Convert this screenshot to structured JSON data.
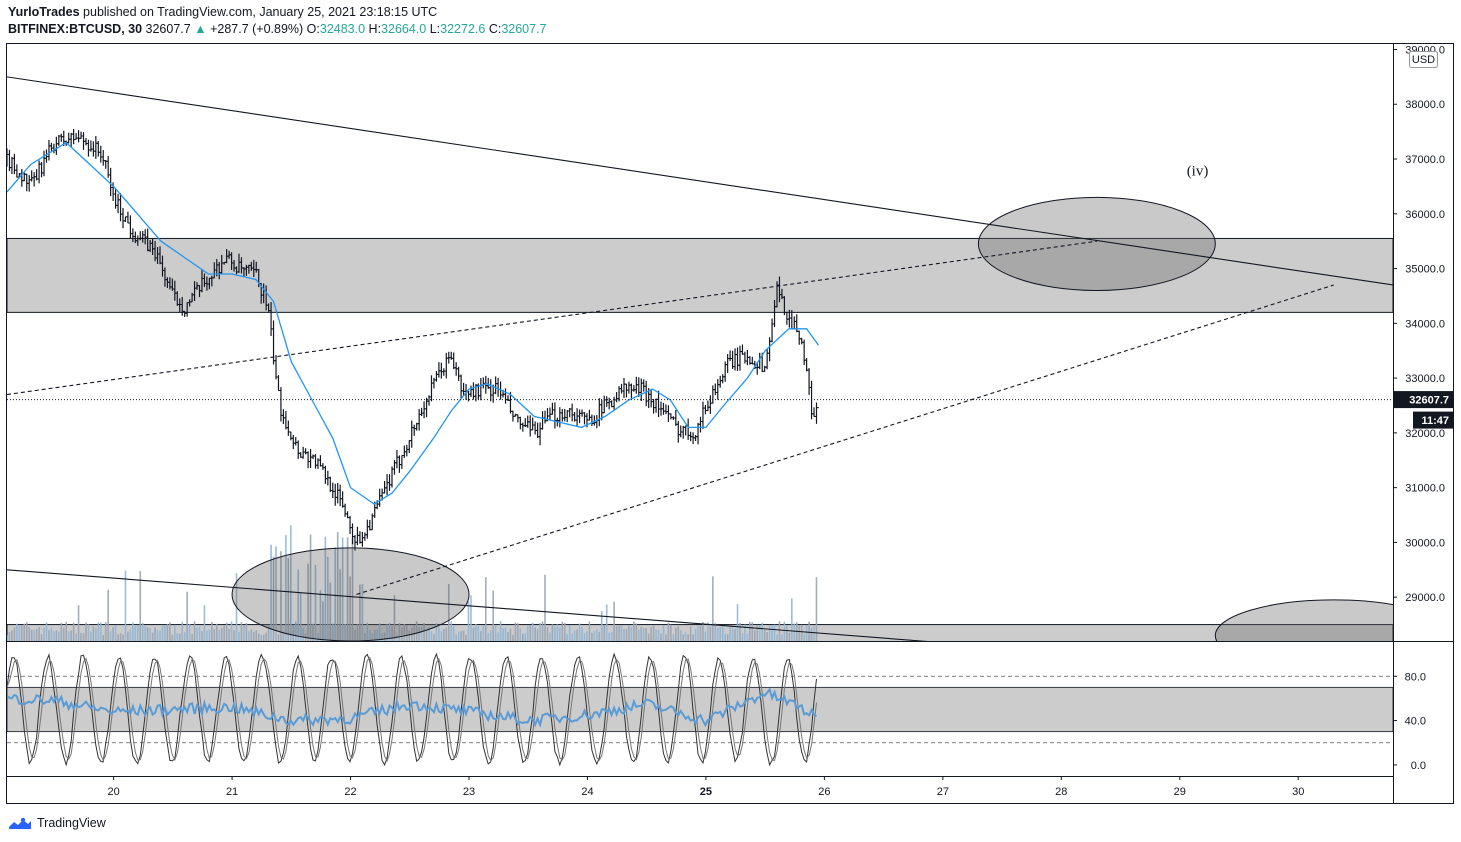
{
  "header": {
    "author": "YurloTrades",
    "published_text": "published on TradingView.com, January 25, 2021 23:18:15 UTC",
    "symbol": "BITFINEX:BTCUSD, 30",
    "last": "32607.7",
    "change_arrow": "▲",
    "change": "+287.7 (+0.89%)",
    "o_label": "O:",
    "o_value": "32483.0",
    "h_label": "H:",
    "h_value": "32664.0",
    "l_label": "L:",
    "l_value": "32272.6",
    "c_label": "C:",
    "c_value": "32607.7"
  },
  "price_axis": {
    "currency": "USD",
    "ticks": [
      "39000.0",
      "38000.0",
      "37000.0",
      "36000.0",
      "35000.0",
      "34000.0",
      "33000.0",
      "32000.0",
      "31000.0",
      "30000.0",
      "29000.0"
    ],
    "current_price_label": "32607.7",
    "countdown_label": "11:47"
  },
  "indicator_axis": {
    "ticks": [
      "80.0",
      "40.0",
      "0.0"
    ]
  },
  "time_axis": {
    "ticks": [
      "20",
      "21",
      "22",
      "23",
      "24",
      "25",
      "26",
      "27",
      "28",
      "29",
      "30"
    ]
  },
  "annotation": {
    "wave_label": "(iv)"
  },
  "footer": {
    "brand": "TradingView"
  },
  "colors": {
    "candle": "#131722",
    "ma": "#2196f3",
    "zone": "#cccccc",
    "volume": "#b0b6c0",
    "stoch": "#444444",
    "rsi": "#5b9bd5"
  },
  "chart_data": {
    "type": "candlestick",
    "title": "BITFINEX:BTCUSD, 30",
    "ylabel": "USD",
    "x_range": [
      19.1,
      30.8
    ],
    "y_range": [
      28200,
      39100
    ],
    "approx_closes": [
      [
        19.1,
        37000
      ],
      [
        19.3,
        36500
      ],
      [
        19.5,
        37300
      ],
      [
        19.7,
        37400
      ],
      [
        19.9,
        37100
      ],
      [
        20.0,
        36300
      ],
      [
        20.15,
        35700
      ],
      [
        20.35,
        35300
      ],
      [
        20.5,
        34500
      ],
      [
        20.6,
        34300
      ],
      [
        20.75,
        34700
      ],
      [
        20.95,
        35200
      ],
      [
        21.05,
        35000
      ],
      [
        21.2,
        34900
      ],
      [
        21.3,
        34300
      ],
      [
        21.4,
        32500
      ],
      [
        21.55,
        31700
      ],
      [
        21.7,
        31500
      ],
      [
        21.85,
        31000
      ],
      [
        21.95,
        30600
      ],
      [
        22.05,
        30000
      ],
      [
        22.15,
        30300
      ],
      [
        22.3,
        31000
      ],
      [
        22.45,
        31700
      ],
      [
        22.6,
        32400
      ],
      [
        22.75,
        33100
      ],
      [
        22.85,
        33400
      ],
      [
        22.95,
        32700
      ],
      [
        23.1,
        32800
      ],
      [
        23.25,
        32800
      ],
      [
        23.4,
        32200
      ],
      [
        23.55,
        32000
      ],
      [
        23.7,
        32300
      ],
      [
        23.85,
        32400
      ],
      [
        24.0,
        32200
      ],
      [
        24.15,
        32500
      ],
      [
        24.3,
        32800
      ],
      [
        24.45,
        32800
      ],
      [
        24.6,
        32500
      ],
      [
        24.75,
        32100
      ],
      [
        24.9,
        32000
      ],
      [
        25.05,
        32700
      ],
      [
        25.2,
        33300
      ],
      [
        25.35,
        33400
      ],
      [
        25.5,
        33200
      ],
      [
        25.6,
        34600
      ],
      [
        25.7,
        34100
      ],
      [
        25.8,
        33800
      ],
      [
        25.9,
        32300
      ],
      [
        25.95,
        32607.7
      ]
    ],
    "moving_average": {
      "name": "MA",
      "points": [
        [
          19.1,
          36400
        ],
        [
          19.3,
          36900
        ],
        [
          19.6,
          37300
        ],
        [
          19.8,
          36900
        ],
        [
          20.0,
          36500
        ],
        [
          20.2,
          36000
        ],
        [
          20.4,
          35500
        ],
        [
          20.6,
          35200
        ],
        [
          20.8,
          34900
        ],
        [
          21.0,
          34900
        ],
        [
          21.2,
          34800
        ],
        [
          21.35,
          34400
        ],
        [
          21.5,
          33300
        ],
        [
          21.7,
          32500
        ],
        [
          21.85,
          31900
        ],
        [
          22.0,
          31000
        ],
        [
          22.2,
          30700
        ],
        [
          22.35,
          30900
        ],
        [
          22.5,
          31300
        ],
        [
          22.7,
          31900
        ],
        [
          22.85,
          32400
        ],
        [
          23.0,
          32800
        ],
        [
          23.15,
          32900
        ],
        [
          23.35,
          32700
        ],
        [
          23.55,
          32300
        ],
        [
          23.75,
          32200
        ],
        [
          23.95,
          32100
        ],
        [
          24.15,
          32300
        ],
        [
          24.35,
          32600
        ],
        [
          24.55,
          32800
        ],
        [
          24.7,
          32600
        ],
        [
          24.85,
          32100
        ],
        [
          25.0,
          32100
        ],
        [
          25.15,
          32500
        ],
        [
          25.35,
          33000
        ],
        [
          25.5,
          33500
        ],
        [
          25.7,
          33900
        ],
        [
          25.85,
          33900
        ],
        [
          25.95,
          33600
        ]
      ]
    },
    "resistance_zone": [
      34200,
      35550
    ],
    "lower_zone": [
      28050,
      28500
    ],
    "trendlines": [
      {
        "name": "descending-top",
        "style": "solid",
        "from": [
          19.1,
          38500
        ],
        "to": [
          30.8,
          34700
        ]
      },
      {
        "name": "descending-bottom",
        "style": "solid",
        "from": [
          19.1,
          29500
        ],
        "to": [
          28.0,
          28000
        ]
      },
      {
        "name": "channel-upper",
        "style": "dashed",
        "from": [
          19.1,
          32700
        ],
        "to": [
          28.3,
          35500
        ]
      },
      {
        "name": "channel-lower",
        "style": "dashed",
        "from": [
          22.05,
          29050
        ],
        "to": [
          30.3,
          34700
        ]
      }
    ],
    "ellipses": [
      {
        "name": "target-iv",
        "center": [
          28.3,
          35450
        ],
        "radius_x": 1.0,
        "radius_y": 850
      },
      {
        "name": "wave-low",
        "center": [
          22.0,
          29050
        ],
        "radius_x": 1.0,
        "radius_y": 850
      },
      {
        "name": "partial-right",
        "center": [
          30.3,
          28300
        ],
        "radius_x": 1.0,
        "radius_y": 650
      }
    ],
    "oscillator": {
      "range": [
        -10,
        110
      ],
      "band": [
        30,
        70
      ],
      "levels": [
        80,
        20
      ],
      "rsi_approx": [
        [
          19.1,
          60
        ],
        [
          19.5,
          58
        ],
        [
          20.0,
          48
        ],
        [
          20.5,
          50
        ],
        [
          21.0,
          52
        ],
        [
          21.5,
          40
        ],
        [
          22.0,
          42
        ],
        [
          22.5,
          55
        ],
        [
          23.0,
          48
        ],
        [
          23.5,
          40
        ],
        [
          24.0,
          45
        ],
        [
          24.5,
          55
        ],
        [
          25.0,
          40
        ],
        [
          25.5,
          65
        ],
        [
          25.8,
          52
        ],
        [
          25.95,
          40
        ]
      ]
    }
  }
}
